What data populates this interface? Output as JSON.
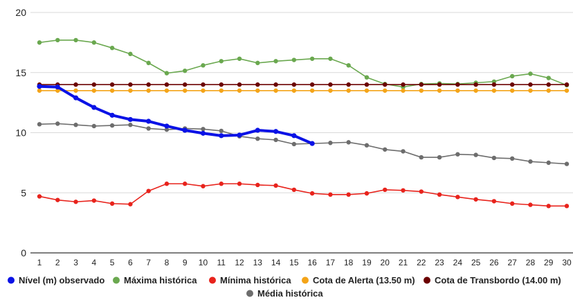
{
  "chart_data": {
    "type": "line",
    "title": "",
    "xlabel": "",
    "ylabel": "",
    "x": [
      1,
      2,
      3,
      4,
      5,
      6,
      7,
      8,
      9,
      10,
      11,
      12,
      13,
      14,
      15,
      16,
      17,
      18,
      19,
      20,
      21,
      22,
      23,
      24,
      25,
      26,
      27,
      28,
      29,
      30
    ],
    "ylim": [
      0,
      20
    ],
    "yticks": [
      0,
      5,
      10,
      15,
      20
    ],
    "grid": "horizontal",
    "legend_position": "bottom",
    "series": [
      {
        "name": "Nível (m) observado",
        "color": "#0a12e6",
        "thick": true,
        "values": [
          13.85,
          13.8,
          12.9,
          12.1,
          11.45,
          11.1,
          10.95,
          10.55,
          10.2,
          9.95,
          9.75,
          9.8,
          10.2,
          10.1,
          9.75,
          9.1,
          null,
          null,
          null,
          null,
          null,
          null,
          null,
          null,
          null,
          null,
          null,
          null,
          null,
          null
        ]
      },
      {
        "name": "Máxima histórica",
        "color": "#6aa84f",
        "values": [
          17.5,
          17.7,
          17.7,
          17.5,
          17.05,
          16.55,
          15.8,
          14.95,
          15.15,
          15.6,
          15.95,
          16.15,
          15.8,
          15.95,
          16.05,
          16.15,
          16.15,
          15.6,
          14.6,
          14.05,
          13.8,
          14.05,
          14.1,
          14.05,
          14.15,
          14.25,
          14.7,
          14.9,
          14.55,
          13.95
        ]
      },
      {
        "name": "Mínima histórica",
        "color": "#e8231c",
        "values": [
          4.7,
          4.4,
          4.25,
          4.35,
          4.1,
          4.05,
          5.15,
          5.75,
          5.75,
          5.55,
          5.75,
          5.75,
          5.65,
          5.6,
          5.25,
          4.95,
          4.85,
          4.85,
          4.95,
          5.25,
          5.2,
          5.1,
          4.85,
          4.65,
          4.45,
          4.3,
          4.1,
          4.0,
          3.9,
          3.9
        ]
      },
      {
        "name": "Cota de Alerta (13.50 m)",
        "color": "#f4a418",
        "values": [
          13.5,
          13.5,
          13.5,
          13.5,
          13.5,
          13.5,
          13.5,
          13.5,
          13.5,
          13.5,
          13.5,
          13.5,
          13.5,
          13.5,
          13.5,
          13.5,
          13.5,
          13.5,
          13.5,
          13.5,
          13.5,
          13.5,
          13.5,
          13.5,
          13.5,
          13.5,
          13.5,
          13.5,
          13.5,
          13.5
        ]
      },
      {
        "name": "Cota de Transbordo (14.00 m)",
        "color": "#6b0000",
        "values": [
          14,
          14,
          14,
          14,
          14,
          14,
          14,
          14,
          14,
          14,
          14,
          14,
          14,
          14,
          14,
          14,
          14,
          14,
          14,
          14,
          14,
          14,
          14,
          14,
          14,
          14,
          14,
          14,
          14,
          14
        ]
      },
      {
        "name": "Média histórica",
        "color": "#6d6d6d",
        "values": [
          10.7,
          10.75,
          10.65,
          10.55,
          10.6,
          10.65,
          10.35,
          10.25,
          10.35,
          10.3,
          10.15,
          9.7,
          9.5,
          9.4,
          9.05,
          9.1,
          9.15,
          9.2,
          8.95,
          8.6,
          8.45,
          7.95,
          7.95,
          8.2,
          8.15,
          7.9,
          7.85,
          7.6,
          7.5,
          7.4
        ]
      }
    ]
  }
}
